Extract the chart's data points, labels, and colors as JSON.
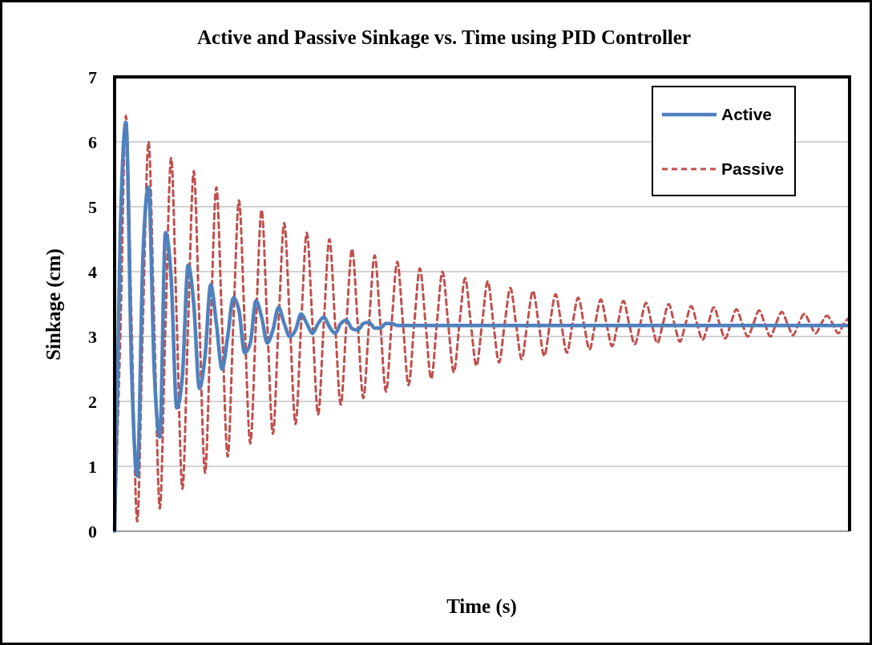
{
  "chart_data": {
    "type": "line",
    "title": "Active and Passive Sinkage vs. Time using PID Controller",
    "xlabel": "Time (s)",
    "ylabel": "Sinkage (cm)",
    "categories": [
      null,
      null,
      null,
      null,
      null,
      null,
      null,
      null,
      null,
      null,
      null,
      null,
      null,
      null,
      null,
      null,
      null,
      null,
      null,
      null,
      null,
      null,
      null,
      null,
      null,
      null,
      null,
      null,
      null,
      null,
      null,
      null,
      null,
      null,
      null,
      null,
      null,
      null,
      null,
      null,
      null,
      null,
      null,
      null,
      null,
      null,
      null,
      null,
      null,
      null,
      null,
      null,
      null,
      null,
      null,
      null,
      null,
      null,
      null,
      null,
      null,
      null,
      null,
      null,
      null,
      null,
      null,
      null,
      null,
      null,
      null,
      null,
      null,
      null,
      null,
      null,
      null,
      null,
      null,
      null,
      null,
      null,
      null,
      null,
      null,
      null,
      null,
      null,
      null,
      null,
      null,
      null,
      null,
      null,
      null,
      null,
      null,
      null,
      null,
      null,
      null,
      null,
      null,
      null,
      null,
      null,
      null,
      null,
      null,
      null,
      null,
      null,
      null,
      null,
      null,
      null,
      null,
      null,
      null,
      null,
      null,
      null,
      null,
      null,
      null,
      null,
      null,
      null,
      null,
      null,
      null
    ],
    "series": [
      {
        "name": "Active",
        "color": "#4f81bd",
        "line_style": "solid",
        "values": [
          0,
          4.6,
          6.3,
          2.5,
          0.85,
          4.2,
          5.3,
          2.5,
          1.45,
          4.6,
          3.9,
          1.9,
          2.4,
          4.1,
          3.5,
          2.2,
          2.7,
          3.8,
          3.2,
          2.5,
          3.0,
          3.6,
          3.4,
          2.75,
          2.9,
          3.55,
          3.3,
          2.9,
          3.1,
          3.45,
          3.2,
          3.0,
          3.1,
          3.35,
          3.2,
          3.05,
          3.2,
          3.3,
          3.15,
          3.05,
          3.2,
          3.25,
          3.12,
          3.1,
          3.2,
          3.22,
          3.13,
          3.13,
          3.2,
          3.2,
          3.17,
          3.17,
          3.17,
          3.17,
          3.17,
          3.17,
          3.17,
          3.17,
          3.17,
          3.17,
          3.17,
          3.17,
          3.17,
          3.17,
          3.17,
          3.17,
          3.17,
          3.17,
          3.17,
          3.17,
          3.17,
          3.17,
          3.17,
          3.17,
          3.17,
          3.17,
          3.17,
          3.17,
          3.17,
          3.17,
          3.17,
          3.17,
          3.17,
          3.17,
          3.17,
          3.17,
          3.17,
          3.17,
          3.17,
          3.17,
          3.17,
          3.17,
          3.17,
          3.17,
          3.17,
          3.17,
          3.17,
          3.17,
          3.17,
          3.17,
          3.17,
          3.17,
          3.17,
          3.17,
          3.17,
          3.17,
          3.17,
          3.17,
          3.17,
          3.17,
          3.17,
          3.17,
          3.17,
          3.17,
          3.17,
          3.17,
          3.17,
          3.17,
          3.17,
          3.17,
          3.17,
          3.17,
          3.17,
          3.17,
          3.17,
          3.17,
          3.17,
          3.17,
          3.17,
          3.17,
          3.17
        ]
      },
      {
        "name": "Passive",
        "color": "#c0504d",
        "line_style": "dashed",
        "values": [
          0,
          3.0,
          6.4,
          3.2,
          0.15,
          3.2,
          6.0,
          3.2,
          0.35,
          3.2,
          5.75,
          3.2,
          0.65,
          3.2,
          5.55,
          3.2,
          0.9,
          3.2,
          5.3,
          3.2,
          1.15,
          3.2,
          5.1,
          3.2,
          1.35,
          3.2,
          4.95,
          3.2,
          1.5,
          3.2,
          4.75,
          3.2,
          1.65,
          3.2,
          4.6,
          3.2,
          1.8,
          3.2,
          4.5,
          3.2,
          1.95,
          3.2,
          4.35,
          3.2,
          2.05,
          3.2,
          4.25,
          3.2,
          2.15,
          3.2,
          4.15,
          3.2,
          2.25,
          3.2,
          4.05,
          3.2,
          2.35,
          3.2,
          4.0,
          3.2,
          2.45,
          3.2,
          3.9,
          3.2,
          2.55,
          3.2,
          3.85,
          3.2,
          2.6,
          3.2,
          3.75,
          3.2,
          2.65,
          3.2,
          3.7,
          3.2,
          2.7,
          3.2,
          3.65,
          3.2,
          2.75,
          3.2,
          3.6,
          3.2,
          2.8,
          3.2,
          3.57,
          3.2,
          2.85,
          3.2,
          3.55,
          3.2,
          2.88,
          3.2,
          3.52,
          3.2,
          2.9,
          3.2,
          3.5,
          3.2,
          2.92,
          3.2,
          3.47,
          3.2,
          2.95,
          3.2,
          3.45,
          3.2,
          2.97,
          3.2,
          3.42,
          3.2,
          3.0,
          3.2,
          3.4,
          3.2,
          3.0,
          3.2,
          3.38,
          3.2,
          3.02,
          3.2,
          3.35,
          3.2,
          3.05,
          3.2,
          3.32,
          3.2,
          3.05,
          3.2,
          3.3
        ]
      }
    ],
    "ylim": [
      0,
      7
    ],
    "yticks": [
      0,
      1,
      2,
      3,
      4,
      5,
      6,
      7
    ],
    "grid": "y",
    "legend": "top right",
    "tick_labels": "y"
  }
}
